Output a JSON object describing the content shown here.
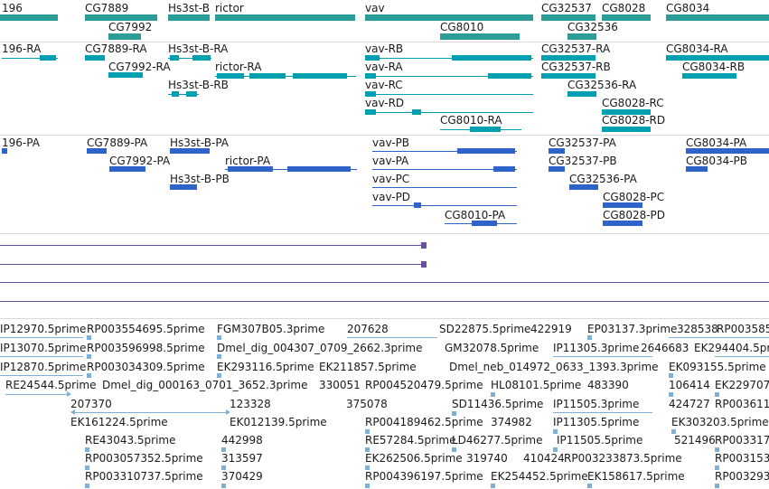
{
  "colors": {
    "gene": "#2a9d97",
    "transcript": "#00a0b0",
    "protein": "#2e63c9",
    "track_line": "#6a4ea0",
    "est": "#7fb0d4"
  },
  "genes": [
    {
      "label": "196"
    },
    {
      "label": "CG7889"
    },
    {
      "label": "CG7992"
    },
    {
      "label": "Hs3st-B"
    },
    {
      "label": "rictor"
    },
    {
      "label": "vav"
    },
    {
      "label": "CG8010"
    },
    {
      "label": "CG32537"
    },
    {
      "label": "CG32536"
    },
    {
      "label": "CG8028"
    },
    {
      "label": "CG8034"
    }
  ],
  "transcripts": [
    {
      "label": "196-RA"
    },
    {
      "label": "CG7889-RA"
    },
    {
      "label": "CG7992-RA"
    },
    {
      "label": "Hs3st-B-RA"
    },
    {
      "label": "Hs3st-B-RB"
    },
    {
      "label": "rictor-RA"
    },
    {
      "label": "vav-RB"
    },
    {
      "label": "vav-RA"
    },
    {
      "label": "vav-RC"
    },
    {
      "label": "vav-RD"
    },
    {
      "label": "CG8010-RA"
    },
    {
      "label": "CG32537-RA"
    },
    {
      "label": "CG32537-RB"
    },
    {
      "label": "CG32536-RA"
    },
    {
      "label": "CG8028-RC"
    },
    {
      "label": "CG8028-RD"
    },
    {
      "label": "CG8034-RA"
    },
    {
      "label": "CG8034-RB"
    }
  ],
  "proteins": [
    {
      "label": "196-PA"
    },
    {
      "label": "CG7889-PA"
    },
    {
      "label": "CG7992-PA"
    },
    {
      "label": "Hs3st-B-PA"
    },
    {
      "label": "Hs3st-B-PB"
    },
    {
      "label": "rictor-PA"
    },
    {
      "label": "vav-PB"
    },
    {
      "label": "vav-PA"
    },
    {
      "label": "vav-PC"
    },
    {
      "label": "vav-PD"
    },
    {
      "label": "CG8010-PA"
    },
    {
      "label": "CG32537-PA"
    },
    {
      "label": "CG32537-PB"
    },
    {
      "label": "CG32536-PA"
    },
    {
      "label": "CG8028-PC"
    },
    {
      "label": "CG8028-PD"
    },
    {
      "label": "CG8034-PA"
    },
    {
      "label": "CG8034-PB"
    }
  ],
  "ests": [
    {
      "label": "IP12970.5prime"
    },
    {
      "label": "RP003554695.5prime"
    },
    {
      "label": "FGM307B05.3prime"
    },
    {
      "label": "207628"
    },
    {
      "label": "SD22875.5prime"
    },
    {
      "label": "422919"
    },
    {
      "label": "EP03137.3prime"
    },
    {
      "label": "328538"
    },
    {
      "label": "RP003585"
    },
    {
      "label": "IP13070.5prime"
    },
    {
      "label": "RP003596998.5prime"
    },
    {
      "label": "Dmel_dig_004307_0709_2662.3prime"
    },
    {
      "label": "GM32078.5prime"
    },
    {
      "label": "IP11305.3prime"
    },
    {
      "label": "2646683"
    },
    {
      "label": "EK294404.5prime"
    },
    {
      "label": "IP12870.5prime"
    },
    {
      "label": "RP003034309.5prime"
    },
    {
      "label": "EK293116.5prime"
    },
    {
      "label": "EK211857.5prime"
    },
    {
      "label": "Dmel_neb_014972_0633_1393.3prime"
    },
    {
      "label": "EK093155.5prime"
    },
    {
      "label": "RE24544.5prime"
    },
    {
      "label": "Dmel_dig_000163_0701_3652.3prime"
    },
    {
      "label": "330051"
    },
    {
      "label": "RP004520479.5prime"
    },
    {
      "label": "HL08101.5prime"
    },
    {
      "label": "483390"
    },
    {
      "label": "106414"
    },
    {
      "label": "EK229707"
    },
    {
      "label": "207370"
    },
    {
      "label": "123328"
    },
    {
      "label": "375078"
    },
    {
      "label": "SD11436.5prime"
    },
    {
      "label": "IP11505.3prime"
    },
    {
      "label": "424727"
    },
    {
      "label": "RP003611"
    },
    {
      "label": "EK161224.5prime"
    },
    {
      "label": "EK012139.5prime"
    },
    {
      "label": "RP004189462.5prime"
    },
    {
      "label": "374982"
    },
    {
      "label": "IP11305.5prime"
    },
    {
      "label": "EK303203.5prime"
    },
    {
      "label": "RE43043.5prime"
    },
    {
      "label": "442998"
    },
    {
      "label": "RE57284.5prime"
    },
    {
      "label": "LD46277.5prime"
    },
    {
      "label": "IP11505.5prime"
    },
    {
      "label": "521496"
    },
    {
      "label": "RP003317"
    },
    {
      "label": "RP003057352.5prime"
    },
    {
      "label": "313597"
    },
    {
      "label": "EK262506.5prime"
    },
    {
      "label": "319740"
    },
    {
      "label": "410424"
    },
    {
      "label": "RP003233873.5prime"
    },
    {
      "label": "RP003153"
    },
    {
      "label": "RP003310737.5prime"
    },
    {
      "label": "370429"
    },
    {
      "label": "RP004396197.5prime"
    },
    {
      "label": "EK254452.5prime"
    },
    {
      "label": "EK158617.5prime"
    },
    {
      "label": "RP003293"
    }
  ]
}
